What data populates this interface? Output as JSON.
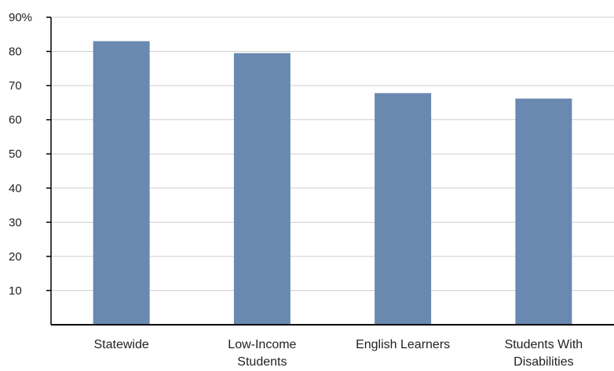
{
  "chart_data": {
    "type": "bar",
    "categories": [
      [
        "Statewide"
      ],
      [
        "Low-Income",
        "Students"
      ],
      [
        "English Learners"
      ],
      [
        "Students With",
        "Disabilities"
      ]
    ],
    "values": [
      83,
      79.5,
      67.8,
      66.2
    ],
    "ylim": [
      0,
      90
    ],
    "yticks": [
      10,
      20,
      30,
      40,
      50,
      60,
      70,
      80,
      90
    ],
    "ytick_labels": [
      "10",
      "20",
      "30",
      "40",
      "50",
      "60",
      "70",
      "80",
      "90%"
    ],
    "grid": true,
    "bar_color": "#6a89b0",
    "grid_color": "#cfcfcf",
    "axis_color": "#000000"
  }
}
